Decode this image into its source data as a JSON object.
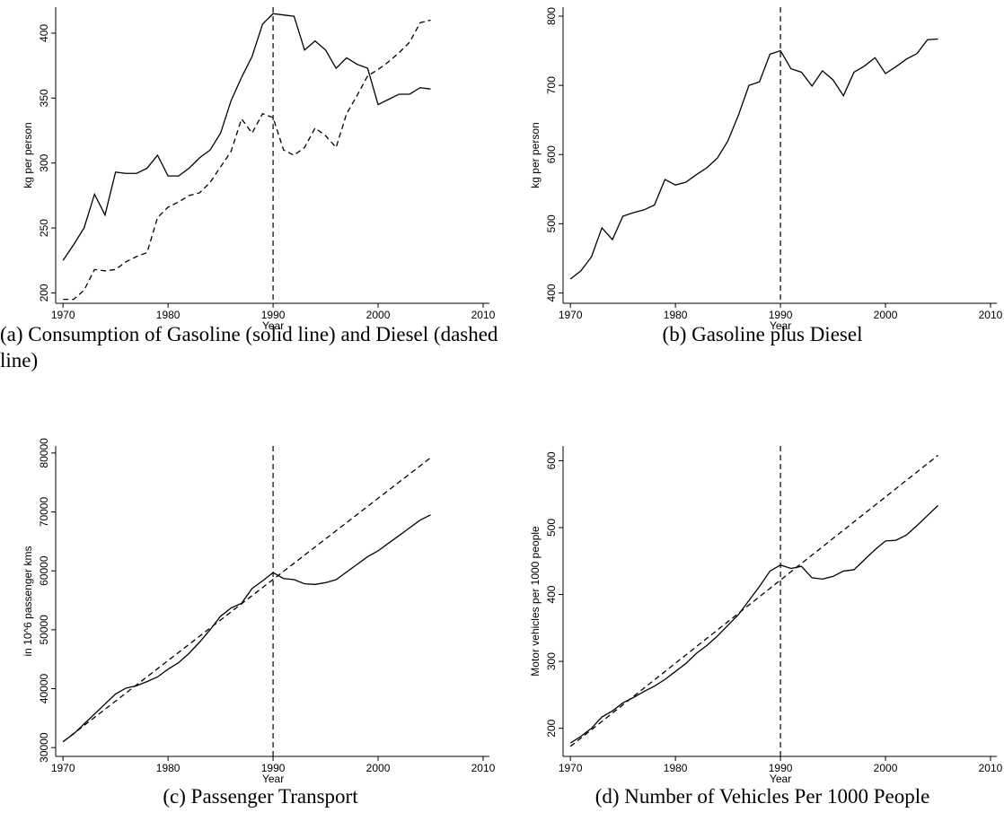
{
  "chart_data": [
    {
      "type": "line",
      "caption": "(a) Consumption of Gasoline (solid line) and Diesel (dashed line)",
      "xlabel": "Year",
      "ylabel": "kg per person",
      "xlim": [
        1969.3,
        2010.6
      ],
      "xticks": [
        1970,
        1980,
        1990,
        2000,
        2010
      ],
      "ylim": [
        192,
        420
      ],
      "yticks": [
        200,
        250,
        300,
        350,
        400
      ],
      "vline": 1990,
      "series": [
        {
          "style": "solid",
          "color": "#000000",
          "x": [
            1970,
            1971,
            1972,
            1973,
            1974,
            1975,
            1976,
            1977,
            1978,
            1979,
            1980,
            1981,
            1982,
            1983,
            1984,
            1985,
            1986,
            1987,
            1988,
            1989,
            1990,
            1991,
            1992,
            1993,
            1994,
            1995,
            1996,
            1997,
            1998,
            1999,
            2000,
            2001,
            2002,
            2003,
            2004,
            2005
          ],
          "values": [
            225,
            237,
            250,
            276,
            260,
            293,
            292,
            292,
            296,
            306,
            290,
            290,
            296,
            304,
            310,
            323,
            348,
            366,
            382,
            407,
            415,
            414,
            413,
            387,
            394,
            387,
            373,
            381,
            376,
            373,
            345,
            349,
            353,
            353,
            358,
            357
          ]
        },
        {
          "style": "dashed",
          "color": "#000000",
          "x": [
            1970,
            1971,
            1972,
            1973,
            1974,
            1975,
            1976,
            1977,
            1978,
            1979,
            1980,
            1981,
            1982,
            1983,
            1984,
            1985,
            1986,
            1987,
            1988,
            1989,
            1990,
            1991,
            1992,
            1993,
            1994,
            1995,
            1996,
            1997,
            1998,
            1999,
            2000,
            2001,
            2002,
            2003,
            2004,
            2005
          ],
          "values": [
            195,
            195,
            202,
            218,
            217,
            218,
            224,
            228,
            231,
            258,
            266,
            270,
            275,
            277,
            285,
            297,
            309,
            334,
            323,
            338,
            335,
            310,
            306,
            312,
            327,
            321,
            312,
            338,
            352,
            367,
            372,
            378,
            385,
            393,
            408,
            410
          ]
        }
      ]
    },
    {
      "type": "line",
      "caption": "(b) Gasoline plus Diesel",
      "xlabel": "Year",
      "ylabel": "kg per person",
      "xlim": [
        1969.3,
        2010.6
      ],
      "xticks": [
        1970,
        1980,
        1990,
        2000,
        2010
      ],
      "ylim": [
        385,
        813
      ],
      "yticks": [
        400,
        500,
        600,
        700,
        800
      ],
      "vline": 1990,
      "series": [
        {
          "style": "solid",
          "color": "#000000",
          "x": [
            1970,
            1971,
            1972,
            1973,
            1974,
            1975,
            1976,
            1977,
            1978,
            1979,
            1980,
            1981,
            1982,
            1983,
            1984,
            1985,
            1986,
            1987,
            1988,
            1989,
            1990,
            1991,
            1992,
            1993,
            1994,
            1995,
            1996,
            1997,
            1998,
            1999,
            2000,
            2001,
            2002,
            2003,
            2004,
            2005
          ],
          "values": [
            420,
            432,
            452,
            494,
            477,
            511,
            516,
            520,
            527,
            564,
            556,
            560,
            571,
            581,
            595,
            620,
            657,
            700,
            705,
            745,
            750,
            724,
            719,
            699,
            721,
            708,
            685,
            719,
            728,
            740,
            717,
            727,
            738,
            746,
            766,
            767
          ]
        }
      ]
    },
    {
      "type": "line",
      "caption": "(c) Passenger Transport",
      "xlabel": "Year",
      "ylabel": "in 10^6 passenger kms",
      "xlim": [
        1969.3,
        2010.6
      ],
      "xticks": [
        1970,
        1980,
        1990,
        2000,
        2010
      ],
      "ylim": [
        28500,
        81200
      ],
      "yticks": [
        30000,
        40000,
        50000,
        60000,
        70000,
        80000
      ],
      "vline": 1990,
      "series": [
        {
          "style": "solid",
          "color": "#000000",
          "x": [
            1970,
            1971,
            1972,
            1973,
            1974,
            1975,
            1976,
            1977,
            1978,
            1979,
            1980,
            1981,
            1982,
            1983,
            1984,
            1985,
            1986,
            1987,
            1988,
            1989,
            1990,
            1991,
            1992,
            1993,
            1994,
            1995,
            1996,
            1997,
            1998,
            1999,
            2000,
            2001,
            2002,
            2003,
            2004,
            2005
          ],
          "values": [
            31000,
            32300,
            34000,
            35700,
            37400,
            39100,
            40100,
            40500,
            41200,
            42000,
            43300,
            44400,
            46000,
            47900,
            50000,
            52300,
            53700,
            54500,
            57000,
            58300,
            59700,
            58700,
            58500,
            57800,
            57700,
            58000,
            58500,
            59800,
            61100,
            62400,
            63400,
            64700,
            66000,
            67300,
            68600,
            69500
          ]
        },
        {
          "style": "dashed",
          "color": "#000000",
          "x": [
            1970,
            2005
          ],
          "values": [
            31000,
            79200
          ]
        }
      ]
    },
    {
      "type": "line",
      "caption": "(d) Number of Vehicles Per 1000 People",
      "xlabel": "Year",
      "ylabel": "Motor vehicles per 1000 people",
      "xlim": [
        1969.3,
        2010.6
      ],
      "xticks": [
        1970,
        1980,
        1990,
        2000,
        2010
      ],
      "ylim": [
        158,
        622
      ],
      "yticks": [
        200,
        300,
        400,
        500,
        600
      ],
      "vline": 1990,
      "series": [
        {
          "style": "solid",
          "color": "#000000",
          "x": [
            1970,
            1971,
            1972,
            1973,
            1974,
            1975,
            1976,
            1977,
            1978,
            1979,
            1980,
            1981,
            1982,
            1983,
            1984,
            1985,
            1986,
            1987,
            1988,
            1989,
            1990,
            1991,
            1992,
            1993,
            1994,
            1995,
            1996,
            1997,
            1998,
            1999,
            2000,
            2001,
            2002,
            2003,
            2004,
            2005
          ],
          "values": [
            178,
            188,
            200,
            217,
            226,
            238,
            246,
            255,
            263,
            273,
            285,
            297,
            312,
            324,
            338,
            354,
            370,
            391,
            412,
            435,
            444,
            439,
            442,
            425,
            423,
            427,
            435,
            437,
            452,
            467,
            480,
            481,
            489,
            503,
            518,
            533
          ]
        },
        {
          "style": "dashed",
          "color": "#000000",
          "x": [
            1970,
            2005
          ],
          "values": [
            173,
            608
          ]
        }
      ]
    }
  ]
}
